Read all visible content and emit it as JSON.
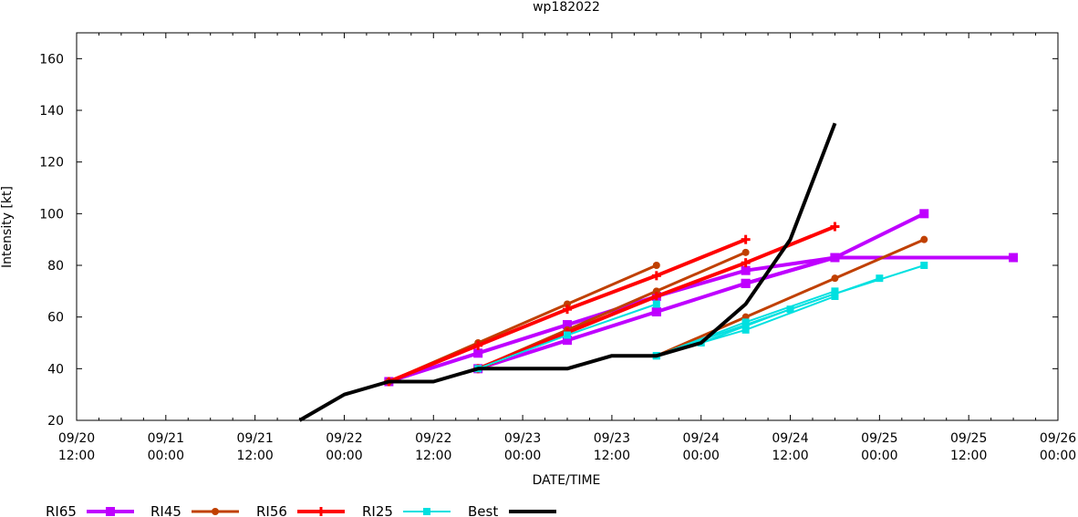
{
  "chart_data": {
    "type": "line",
    "title": "wp182022",
    "xlabel": "DATE/TIME",
    "ylabel": "Intensity [kt]",
    "ylim": [
      20,
      170
    ],
    "yticks": [
      20,
      40,
      60,
      80,
      100,
      120,
      140,
      160
    ],
    "xrange_hours": [
      0,
      132
    ],
    "x_origin": "09/20 12:00",
    "xticks": [
      {
        "h": 0,
        "line1": "09/20",
        "line2": "12:00"
      },
      {
        "h": 12,
        "line1": "09/21",
        "line2": "00:00"
      },
      {
        "h": 24,
        "line1": "09/21",
        "line2": "12:00"
      },
      {
        "h": 36,
        "line1": "09/22",
        "line2": "00:00"
      },
      {
        "h": 48,
        "line1": "09/22",
        "line2": "12:00"
      },
      {
        "h": 60,
        "line1": "09/23",
        "line2": "00:00"
      },
      {
        "h": 72,
        "line1": "09/23",
        "line2": "12:00"
      },
      {
        "h": 84,
        "line1": "09/24",
        "line2": "00:00"
      },
      {
        "h": 96,
        "line1": "09/24",
        "line2": "12:00"
      },
      {
        "h": 108,
        "line1": "09/25",
        "line2": "00:00"
      },
      {
        "h": 120,
        "line1": "09/25",
        "line2": "12:00"
      },
      {
        "h": 132,
        "line1": "09/26",
        "line2": "00:00"
      }
    ],
    "grid": false,
    "legend_position": "bottom",
    "series": [
      {
        "name": "RI65",
        "color": "#bf00ff",
        "width": 4,
        "marker": "square",
        "marker_size": 10,
        "segments": [
          [
            [
              42,
              35
            ],
            [
              54,
              46
            ],
            [
              66,
              57
            ]
          ],
          [
            [
              54,
              40
            ],
            [
              66,
              51
            ],
            [
              78,
              62
            ]
          ],
          [
            [
              66,
              57
            ],
            [
              78,
              68
            ],
            [
              90,
              78
            ],
            [
              102,
              83
            ],
            [
              126,
              83
            ]
          ],
          [
            [
              78,
              62
            ],
            [
              90,
              73
            ],
            [
              102,
              83
            ]
          ],
          [
            [
              90,
              73
            ],
            [
              102,
              83
            ],
            [
              114,
              100
            ]
          ]
        ]
      },
      {
        "name": "RI45",
        "color": "#c04000",
        "width": 3,
        "marker": "circle",
        "marker_size": 8,
        "segments": [
          [
            [
              42,
              35
            ],
            [
              54,
              50
            ],
            [
              66,
              65
            ],
            [
              78,
              80
            ]
          ],
          [
            [
              54,
              40
            ],
            [
              66,
              55
            ],
            [
              78,
              70
            ],
            [
              90,
              85
            ]
          ],
          [
            [
              78,
              45
            ],
            [
              90,
              60
            ],
            [
              102,
              75
            ],
            [
              114,
              90
            ]
          ]
        ]
      },
      {
        "name": "RI56",
        "color": "#ff0000",
        "width": 4,
        "marker": "plus",
        "marker_size": 10,
        "segments": [
          [
            [
              42,
              35
            ],
            [
              54,
              49
            ],
            [
              66,
              63
            ],
            [
              78,
              76
            ],
            [
              90,
              90
            ]
          ],
          [
            [
              54,
              40
            ],
            [
              66,
              54
            ],
            [
              78,
              68
            ],
            [
              90,
              81
            ],
            [
              102,
              95
            ]
          ]
        ]
      },
      {
        "name": "RI25",
        "color": "#00e0e0",
        "width": 2,
        "marker": "square",
        "marker_size": 8,
        "segments": [
          [
            [
              54,
              40
            ],
            [
              66,
              53
            ],
            [
              78,
              65
            ]
          ],
          [
            [
              78,
              45
            ],
            [
              90,
              57
            ],
            [
              102,
              69
            ],
            [
              114,
              80
            ]
          ],
          [
            [
              78,
              45
            ],
            [
              90,
              55
            ],
            [
              102,
              68
            ]
          ],
          [
            [
              84,
              50
            ],
            [
              96,
              63
            ],
            [
              108,
              75
            ]
          ],
          [
            [
              78,
              45
            ],
            [
              90,
              58
            ],
            [
              102,
              70
            ]
          ]
        ]
      },
      {
        "name": "Best",
        "color": "#000000",
        "width": 4,
        "marker": "none",
        "segments": [
          [
            [
              30,
              20
            ],
            [
              36,
              30
            ],
            [
              42,
              35
            ],
            [
              48,
              35
            ],
            [
              54,
              40
            ],
            [
              60,
              40
            ],
            [
              66,
              40
            ],
            [
              72,
              45
            ],
            [
              78,
              45
            ],
            [
              84,
              50
            ],
            [
              90,
              65
            ],
            [
              96,
              90
            ],
            [
              102,
              135
            ]
          ]
        ]
      }
    ]
  },
  "legend": [
    {
      "label": "RI65"
    },
    {
      "label": "RI45"
    },
    {
      "label": "RI56"
    },
    {
      "label": "RI25"
    },
    {
      "label": "Best"
    }
  ]
}
